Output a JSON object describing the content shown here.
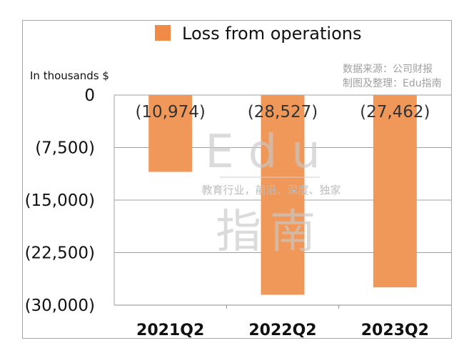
{
  "chart_data": {
    "type": "bar",
    "title": "",
    "xlabel": "",
    "ylabel": "In thousands $",
    "categories": [
      "2021Q2",
      "2022Q2",
      "2023Q2"
    ],
    "series": [
      {
        "name": "Loss from operations",
        "values": [
          -10974,
          -28527,
          -27462
        ]
      }
    ],
    "data_labels": [
      "(10,974)",
      "(28,527)",
      "(27,462)"
    ],
    "ylim": [
      -30000,
      0
    ],
    "yticks": [
      0,
      -7500,
      -15000,
      -22500,
      -30000
    ],
    "ytick_labels": [
      "0",
      "(7,500)",
      "(15,000)",
      "(22,500)",
      "(30,000)"
    ],
    "grid": true,
    "legend_position": "top-center",
    "bar_color": "#f0985a",
    "legend_color": "#f08a47"
  },
  "watermark": {
    "source_line1": "数据来源：公司财报",
    "source_line2": "制图及整理：Edu指南",
    "brand": "Edu",
    "slogan": "教育行业，前沿、深度、独家",
    "brand_cn": "指南"
  }
}
